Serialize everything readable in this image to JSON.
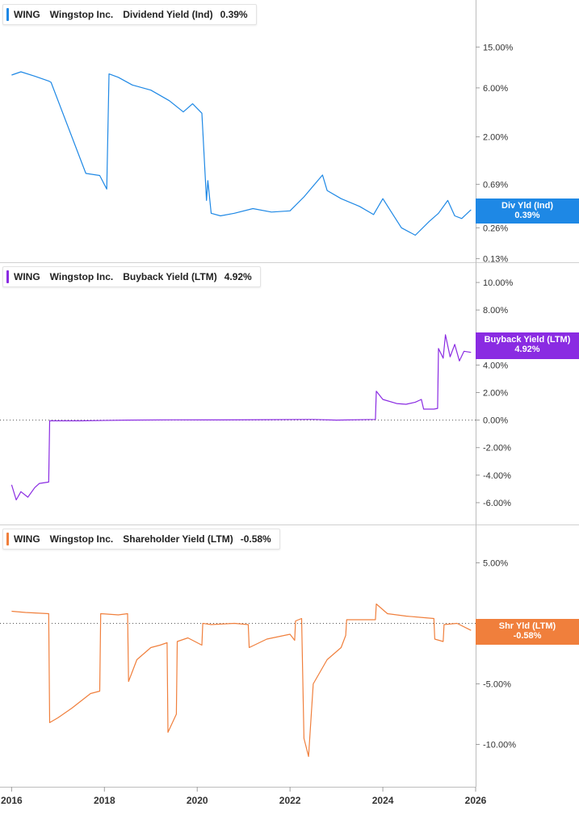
{
  "chart_data": [
    {
      "type": "line",
      "ticker": "WING",
      "company": "Wingstop Inc.",
      "metric": "Dividend Yield (Ind)",
      "current_value": "0.39%",
      "badge_label": "Div Yld (Ind)",
      "color": "#1e88e5",
      "scale": "log",
      "ylim": [
        0.12,
        30
      ],
      "yticks": [
        0.13,
        0.26,
        0.69,
        2.0,
        6.0,
        15.0
      ],
      "ytick_labels": [
        "0.13%",
        "0.26%",
        "0.69%",
        "2.00%",
        "6.00%",
        "15.00%"
      ],
      "series": [
        {
          "x": [
            2016.0,
            2016.2,
            2016.5,
            2016.8,
            2016.85,
            2017.6,
            2017.9,
            2018.05,
            2018.1,
            2018.3,
            2018.6,
            2019.0,
            2019.4,
            2019.7,
            2019.9,
            2020.1,
            2020.2,
            2020.23,
            2020.3,
            2020.5,
            2020.8,
            2021.2,
            2021.6,
            2022.0,
            2022.3,
            2022.7,
            2022.8,
            2023.1,
            2023.5,
            2023.8,
            2024.0,
            2024.2,
            2024.4,
            2024.7,
            2025.0,
            2025.2,
            2025.4,
            2025.55,
            2025.7,
            2025.9
          ],
          "y": [
            8.0,
            8.6,
            7.8,
            7.0,
            6.8,
            0.88,
            0.84,
            0.62,
            8.2,
            7.6,
            6.4,
            5.7,
            4.5,
            3.5,
            4.2,
            3.4,
            0.48,
            0.75,
            0.36,
            0.34,
            0.36,
            0.4,
            0.37,
            0.38,
            0.52,
            0.85,
            0.6,
            0.5,
            0.42,
            0.35,
            0.5,
            0.36,
            0.26,
            0.22,
            0.3,
            0.36,
            0.48,
            0.34,
            0.32,
            0.39
          ]
        }
      ]
    },
    {
      "type": "line",
      "ticker": "WING",
      "company": "Wingstop Inc.",
      "metric": "Buyback Yield (LTM)",
      "current_value": "4.92%",
      "badge_label": "Buyback Yield (LTM)",
      "color": "#8a2be2",
      "ylim": [
        -7.0,
        11.0
      ],
      "yticks": [
        -6.0,
        -4.0,
        -2.0,
        0.0,
        2.0,
        4.0,
        6.0,
        8.0,
        10.0
      ],
      "ytick_labels": [
        "-6.00%",
        "-4.00%",
        "-2.00%",
        "0.00%",
        "2.00%",
        "4.00%",
        "6.00%",
        "8.00%",
        "10.00%"
      ],
      "series": [
        {
          "x": [
            2016.0,
            2016.1,
            2016.2,
            2016.35,
            2016.5,
            2016.6,
            2016.8,
            2016.82,
            2017.5,
            2018.5,
            2019.5,
            2020.5,
            2021.5,
            2022.5,
            2023.0,
            2023.84,
            2023.86,
            2024.0,
            2024.3,
            2024.5,
            2024.7,
            2024.83,
            2024.88,
            2025.1,
            2025.18,
            2025.2,
            2025.3,
            2025.35,
            2025.45,
            2025.55,
            2025.65,
            2025.75,
            2025.9
          ],
          "y": [
            -4.7,
            -5.8,
            -5.2,
            -5.6,
            -4.9,
            -4.6,
            -4.5,
            -0.05,
            -0.05,
            0.0,
            0.02,
            0.01,
            0.03,
            0.05,
            0.0,
            0.05,
            2.1,
            1.5,
            1.2,
            1.15,
            1.3,
            1.5,
            0.8,
            0.8,
            0.85,
            5.2,
            4.5,
            6.2,
            4.6,
            5.5,
            4.3,
            5.0,
            4.92
          ]
        }
      ]
    },
    {
      "type": "line",
      "ticker": "WING",
      "company": "Wingstop Inc.",
      "metric": "Shareholder Yield (LTM)",
      "current_value": "-0.58%",
      "badge_label": "Shr Yld (LTM)",
      "color": "#f07f3c",
      "ylim": [
        -12.5,
        7.5
      ],
      "yticks": [
        -10.0,
        -5.0,
        0.0,
        5.0
      ],
      "ytick_labels": [
        "-10.00%",
        "-5.00%",
        "0.00%",
        "5.00%"
      ],
      "series": [
        {
          "x": [
            2016.0,
            2016.3,
            2016.8,
            2016.82,
            2017.0,
            2017.3,
            2017.7,
            2017.9,
            2017.92,
            2018.3,
            2018.5,
            2018.52,
            2018.7,
            2019.0,
            2019.2,
            2019.35,
            2019.37,
            2019.55,
            2019.57,
            2019.8,
            2020.1,
            2020.12,
            2020.3,
            2020.8,
            2021.1,
            2021.12,
            2021.5,
            2022.0,
            2022.1,
            2022.12,
            2022.25,
            2022.3,
            2022.4,
            2022.5,
            2022.8,
            2023.1,
            2023.2,
            2023.22,
            2023.8,
            2023.84,
            2023.86,
            2024.1,
            2024.5,
            2024.8,
            2025.1,
            2025.12,
            2025.3,
            2025.32,
            2025.6,
            2025.9
          ],
          "y": [
            1.0,
            0.9,
            0.8,
            -8.2,
            -7.8,
            -7.0,
            -5.8,
            -5.6,
            0.8,
            0.7,
            0.8,
            -4.8,
            -3.0,
            -2.0,
            -1.8,
            -1.6,
            -9.0,
            -7.5,
            -1.5,
            -1.2,
            -1.8,
            0.0,
            -0.1,
            0.0,
            -0.1,
            -2.0,
            -1.3,
            -0.9,
            -1.4,
            0.2,
            0.4,
            -9.5,
            -11.0,
            -5.0,
            -3.0,
            -2.0,
            -1.0,
            0.3,
            0.3,
            0.3,
            1.6,
            0.8,
            0.6,
            0.5,
            0.4,
            -1.3,
            -1.5,
            -0.1,
            0.0,
            -0.58
          ]
        }
      ]
    }
  ],
  "x_axis": {
    "ticks": [
      2016,
      2018,
      2020,
      2022,
      2024,
      2026
    ],
    "tick_labels": [
      "2016",
      "2018",
      "2020",
      "2022",
      "2024",
      "2026"
    ],
    "range": [
      2015.75,
      2026.0
    ]
  }
}
